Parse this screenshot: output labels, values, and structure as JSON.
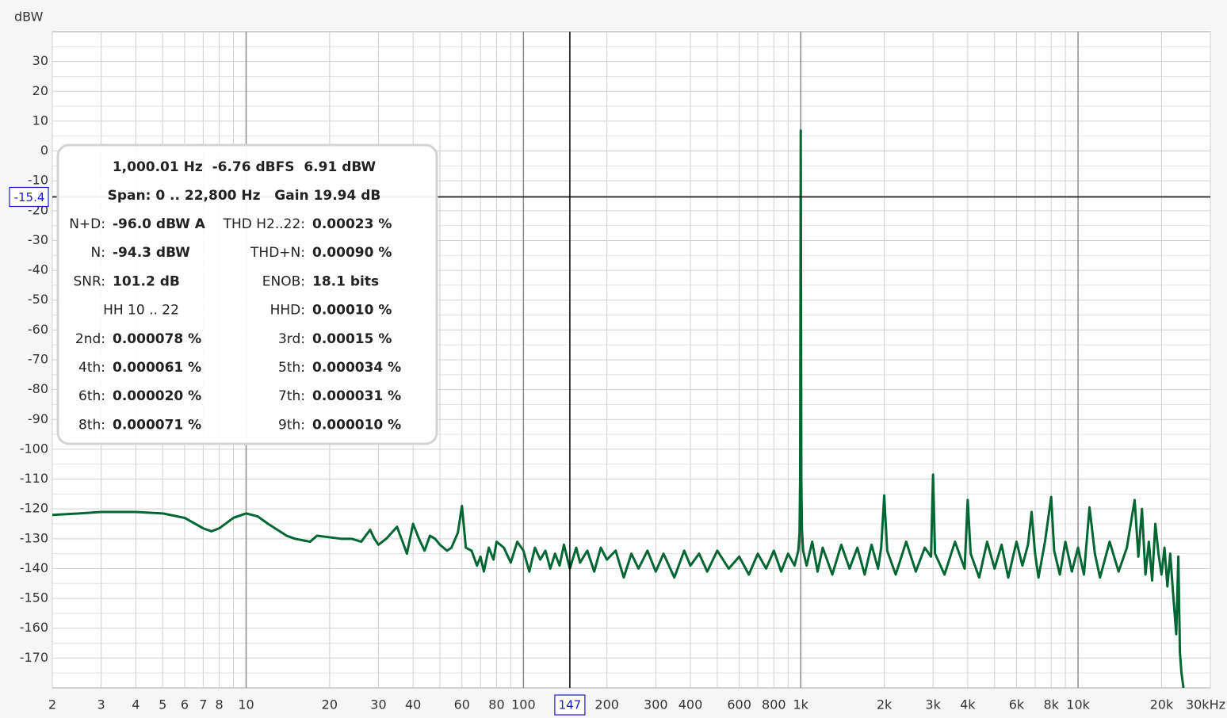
{
  "chart_data": {
    "type": "line",
    "y_label": "dBW",
    "log_x": true,
    "xlim": [
      2,
      30000
    ],
    "ylim": [
      -180,
      40
    ],
    "xticks": [
      2,
      3,
      4,
      5,
      6,
      7,
      8,
      10,
      20,
      30,
      40,
      60,
      80,
      100,
      200,
      300,
      400,
      600,
      800,
      {
        "value": 1000,
        "label": "1k"
      },
      {
        "value": 2000,
        "label": "2k"
      },
      {
        "value": 3000,
        "label": "3k"
      },
      {
        "value": 4000,
        "label": "4k"
      },
      {
        "value": 6000,
        "label": "6k"
      },
      {
        "value": 8000,
        "label": "8k"
      },
      {
        "value": 10000,
        "label": "10k"
      },
      {
        "value": 20000,
        "label": "20k"
      },
      {
        "value": 30000,
        "label": "30kHz"
      }
    ],
    "x_minor_grid": [
      9,
      50,
      70,
      90,
      500,
      700,
      900,
      5000,
      7000,
      9000
    ],
    "yticks": [
      30,
      20,
      10,
      0,
      -10,
      -20,
      -30,
      -40,
      -50,
      -60,
      -70,
      -80,
      -90,
      -100,
      -110,
      -120,
      -130,
      -140,
      -150,
      -160,
      -170
    ],
    "y_minor_grid": [
      35,
      25,
      15,
      5,
      -5,
      -15,
      -25,
      -35,
      -45,
      -55,
      -65,
      -75,
      -85,
      -95,
      -105,
      -115,
      -125,
      -135,
      -145,
      -155,
      -165,
      -175
    ],
    "grid": true,
    "color": "#006633",
    "cursor": {
      "x": 147,
      "y": -15.4
    },
    "x": [
      2,
      2.5,
      3,
      4,
      5,
      6,
      7,
      7.5,
      8,
      9,
      10,
      11,
      12,
      14,
      15,
      17,
      18,
      20,
      22,
      24,
      26,
      28,
      29,
      30,
      32,
      35,
      37,
      38,
      40,
      42,
      44,
      46,
      48,
      50,
      53,
      55,
      58,
      60,
      62,
      65,
      68,
      70,
      72,
      75,
      78,
      80,
      85,
      90,
      95,
      100,
      105,
      110,
      115,
      120,
      125,
      130,
      135,
      140,
      147,
      155,
      160,
      170,
      180,
      190,
      200,
      215,
      230,
      245,
      260,
      280,
      300,
      320,
      350,
      380,
      400,
      430,
      460,
      500,
      550,
      600,
      650,
      700,
      750,
      800,
      850,
      900,
      950,
      980,
      990,
      995,
      1000,
      1005,
      1010,
      1020,
      1050,
      1100,
      1150,
      1200,
      1300,
      1400,
      1500,
      1600,
      1700,
      1800,
      1900,
      1950,
      2000,
      2050,
      2200,
      2400,
      2600,
      2800,
      2950,
      3000,
      3050,
      3300,
      3600,
      3900,
      4000,
      4100,
      4400,
      4700,
      5000,
      5300,
      5600,
      6000,
      6300,
      6600,
      6800,
      7000,
      7200,
      7600,
      8000,
      8200,
      8600,
      9000,
      9500,
      10000,
      10500,
      11000,
      11500,
      12000,
      13000,
      14000,
      15000,
      16000,
      16500,
      17000,
      17500,
      18000,
      18500,
      19000,
      19500,
      20000,
      20500,
      21000,
      21500,
      22000,
      22300,
      22600,
      23000,
      23300,
      23600,
      24000
    ],
    "values": [
      -122,
      -121.5,
      -121,
      -121,
      -121.5,
      -123,
      -126.5,
      -127.5,
      -126.5,
      -123,
      -121.5,
      -122.5,
      -125,
      -129,
      -130,
      -131,
      -129,
      -129.5,
      -130,
      -130,
      -131,
      -127,
      -130,
      -132,
      -130,
      -126,
      -132,
      -135,
      -125,
      -130,
      -134,
      -129,
      -130,
      -132,
      -134,
      -133,
      -128,
      -119,
      -133,
      -134,
      -139,
      -136,
      -141,
      -133,
      -137,
      -131,
      -133,
      -138,
      -131,
      -134,
      -141,
      -133,
      -137,
      -134,
      -140,
      -135,
      -139,
      -132,
      -140,
      -133,
      -138,
      -134,
      -141,
      -133,
      -137,
      -134,
      -143,
      -135,
      -140,
      -134,
      -141,
      -135,
      -143,
      -134,
      -139,
      -135,
      -141,
      -134,
      -140,
      -136,
      -142,
      -135,
      -140,
      -134,
      -141,
      -135,
      -139,
      -134,
      -128,
      -110,
      6.9,
      -110,
      -127,
      -134,
      -139,
      -131,
      -141,
      -133,
      -142,
      -132,
      -140,
      -133,
      -142,
      -132,
      -140,
      -133,
      -115.5,
      -134,
      -142,
      -131,
      -141,
      -133,
      -136,
      -108.5,
      -135,
      -142,
      -131,
      -140,
      -117,
      -135,
      -143,
      -131,
      -140,
      -132,
      -143,
      -131,
      -139,
      -132,
      -121,
      -135,
      -143,
      -131,
      -116,
      -134,
      -142,
      -131,
      -141,
      -133,
      -142,
      -119.5,
      -135,
      -143,
      -131,
      -141,
      -133,
      -117,
      -136,
      -120,
      -142,
      -131,
      -144,
      -125,
      -135,
      -142,
      -133,
      -146,
      -135,
      -148,
      -155,
      -162,
      -136,
      -168,
      -175,
      -180
    ],
    "info_box": {
      "header": [
        "1,000.01 Hz  -6.76 dBFS  6.91 dBW",
        "Span: 0 .. 22,800 Hz   Gain 19.94 dB"
      ],
      "rows": [
        {
          "left_label": "N+D:",
          "left_value": "-96.0 dBW A",
          "right_label": "THD H2..22:",
          "right_value": "0.00023 %"
        },
        {
          "left_label": "N:",
          "left_value": "-94.3 dBW",
          "right_label": "THD+N:",
          "right_value": "0.00090 %"
        },
        {
          "left_label": "SNR:",
          "left_value": "101.2 dB",
          "right_label": "ENOB:",
          "right_value": "18.1 bits"
        },
        {
          "left_text": "HH 10 .. 22",
          "right_label": "HHD:",
          "right_value": "0.00010 %"
        },
        {
          "left_label": "2nd:",
          "left_value": "0.000078 %",
          "right_label": "3rd:",
          "right_value": "0.00015 %"
        },
        {
          "left_label": "4th:",
          "left_value": "0.000061 %",
          "right_label": "5th:",
          "right_value": "0.000034 %"
        },
        {
          "left_label": "6th:",
          "left_value": "0.000020 %",
          "right_label": "7th:",
          "right_value": "0.000031 %"
        },
        {
          "left_label": "8th:",
          "left_value": "0.000071 %",
          "right_label": "9th:",
          "right_value": "0.000010 %"
        }
      ]
    }
  }
}
